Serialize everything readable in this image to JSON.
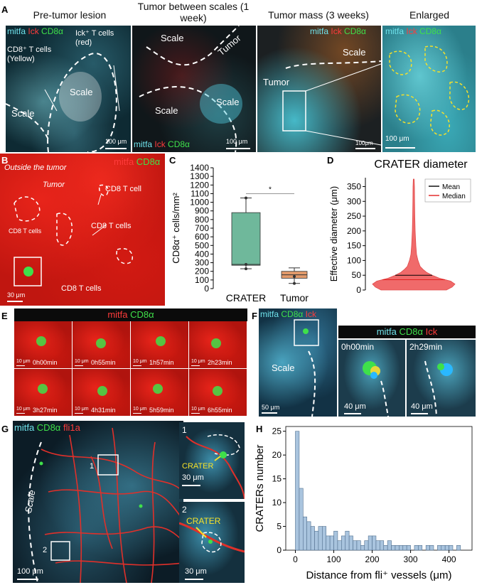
{
  "panels": {
    "A": {
      "label": "A",
      "headers": [
        "Pre-tumor lesion",
        "Tumor between scales (1 week)",
        "Tumor mass (3 weeks)",
        "Enlarged"
      ],
      "tile1_labels": [
        "Ick⁺ T cells (red)",
        "CD8⁺ T cells (Yellow)",
        "Scale",
        "Scale"
      ],
      "tile2_labels": [
        "Scale",
        "Tumor",
        "Scale",
        "Scale"
      ],
      "tile3_labels": [
        "Scale",
        "Tumor"
      ],
      "scalebars": [
        "100 μm",
        "100 μm",
        "100μm",
        "100 μm"
      ]
    },
    "B": {
      "label": "B",
      "caption": "Outside the tumor",
      "labels": [
        "Tumor",
        "CD8 T cell",
        "CD8 T cells",
        "CD8 T cells",
        "CD8 T cells"
      ],
      "scalebar": "30 μm"
    },
    "E": {
      "label": "E",
      "frames": [
        "0h00min",
        "0h55min",
        "1h57min",
        "2h23min",
        "3h27min",
        "4h31min",
        "5h59min",
        "6h55min"
      ],
      "scalebar": "10 μm"
    },
    "F": {
      "label": "F",
      "scale_label": "Scale",
      "scalebars": [
        "50 μm",
        "40 μm",
        "40 μm"
      ],
      "frames": [
        "0h00min",
        "2h29min"
      ]
    },
    "G": {
      "label": "G",
      "scale_label": "Scale",
      "inset_nums": [
        "1",
        "2"
      ],
      "crater": "CRATER",
      "scalebars": [
        "100 μm",
        "30 μm",
        "30 μm"
      ]
    }
  },
  "channels": {
    "mitfa": "mitfa",
    "lck": "Ick",
    "cd8": "CD8α",
    "fli1a": "fli1a"
  },
  "colors": {
    "cyan": "#6fe3ec",
    "red": "#ff3b3b",
    "green": "#3fe04a",
    "box_teal": "#6fb89b",
    "box_orange": "#e29a6b",
    "violin": "#f06a6a",
    "hist": "#a9c4de"
  },
  "chart_data": [
    {
      "id": "C",
      "panel_label": "C",
      "type": "box",
      "categories": [
        "CRATER",
        "Tumor"
      ],
      "ylabel": "CD8α⁺ cells/mm²",
      "ylim": [
        0,
        1400
      ],
      "yticks": [
        0,
        100,
        200,
        300,
        400,
        500,
        600,
        700,
        800,
        900,
        1000,
        1100,
        1200,
        1300,
        1400
      ],
      "boxes": [
        {
          "name": "CRATER",
          "min": 230,
          "q1": 270,
          "median": 280,
          "q3": 880,
          "max": 1050,
          "points": [
            1050,
            280,
            230
          ]
        },
        {
          "name": "Tumor",
          "min": 60,
          "q1": 120,
          "median": 160,
          "q3": 200,
          "max": 240,
          "points": [
            140,
            60
          ]
        }
      ],
      "significance": "*"
    },
    {
      "id": "D",
      "panel_label": "D",
      "type": "violin",
      "title": "CRATER diameter",
      "ylabel": "Effective diameter (μm)",
      "ylim": [
        0,
        380
      ],
      "yticks": [
        0,
        50,
        100,
        150,
        200,
        250,
        300,
        350
      ],
      "mean": 50,
      "median": 35,
      "legend": [
        "Mean",
        "Median"
      ],
      "legend_colors": [
        "#000000",
        "#e02020"
      ]
    },
    {
      "id": "H",
      "panel_label": "H",
      "type": "bar",
      "xlabel": "Distance from fli⁺ vessels (μm)",
      "ylabel": "CRATERs number",
      "xlim": [
        -25,
        460
      ],
      "ylim": [
        0,
        26
      ],
      "xticks": [
        0,
        100,
        200,
        300,
        400
      ],
      "yticks": [
        0,
        5,
        10,
        15,
        20,
        25
      ],
      "bin_width": 10,
      "bin_start": 0,
      "values": [
        25,
        13,
        7,
        6,
        5,
        4,
        5,
        5,
        3,
        3,
        4,
        2,
        3,
        4,
        3,
        2,
        2,
        1,
        2,
        3,
        3,
        2,
        2,
        1,
        2,
        1,
        1,
        1,
        1,
        1,
        0,
        1,
        1,
        0,
        1,
        1,
        0,
        1,
        1,
        1,
        1,
        0,
        1
      ]
    }
  ]
}
